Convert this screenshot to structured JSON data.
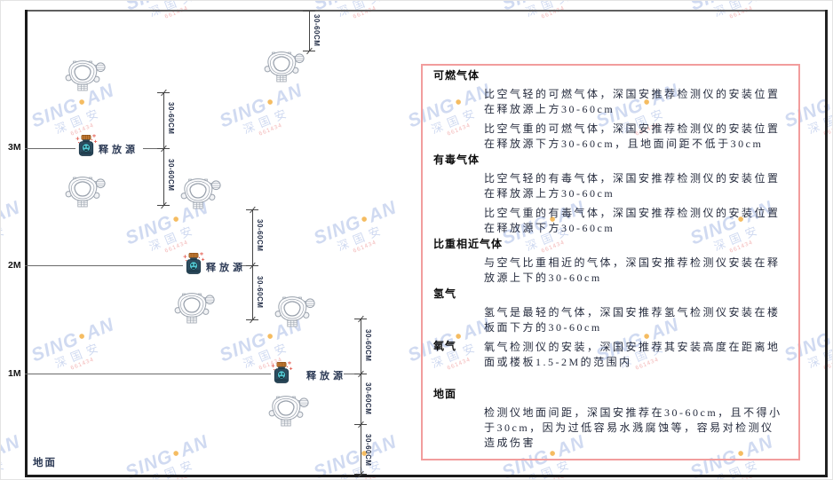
{
  "diagram": {
    "axis": {
      "m3": "3M",
      "m2": "2M",
      "m1": "1M",
      "ground": "地面"
    },
    "dim_label": "30-60CM",
    "source_label": "释放源"
  },
  "panel": {
    "sections": [
      {
        "heading": "可燃气体",
        "paras": [
          "比空气轻的可燃气体，深国安推荐检测仪的安装位置在释放源上方30-60cm",
          "比空气重的可燃气体，深国安推荐检测仪的安装位置在释放源下方30-60cm，且地面间距不低于30cm"
        ]
      },
      {
        "heading": "有毒气体",
        "paras": [
          "比空气轻的有毒气体，深国安推荐检测仪的安装位置在释放源上方30-60cm",
          "比空气重的有毒气体，深国安推荐检测仪的安装位置在释放源下方30-60cm"
        ]
      },
      {
        "heading": "比重相近气体",
        "paras": [
          "与空气比重相近的气体，深国安推荐检测仪安装在释放源上下的30-60cm"
        ]
      },
      {
        "heading": "氢气",
        "paras": [
          "氢气是最轻的气体，深国安推荐氢气检测仪安装在楼板面下方的30-60cm"
        ]
      },
      {
        "heading": "氧气",
        "paras": [
          "氧气检测仪的安装，深国安推荐其安装高度在距离地面或楼板1.5-2M的范围内"
        ]
      },
      {
        "heading": "地面",
        "paras": [
          "检测仪地面间距，深国安推荐在30-60cm，且不得小于30cm，因为过低容易水溅腐蚀等，容易对检测仪造成伤害"
        ]
      }
    ]
  },
  "watermark": {
    "brand": "SING",
    "dot": "●",
    "brand2": "AN",
    "cjk": "深国安",
    "code": "661434"
  },
  "colors": {
    "panel_border": "#f29d9d",
    "source_body": "#2e4d60",
    "source_cap": "#c27a33",
    "source_face": "#52c6d1",
    "detector_outline": "#9aa2ad",
    "watermark_blue": "#7694d6",
    "watermark_orange": "#f2a62c"
  }
}
